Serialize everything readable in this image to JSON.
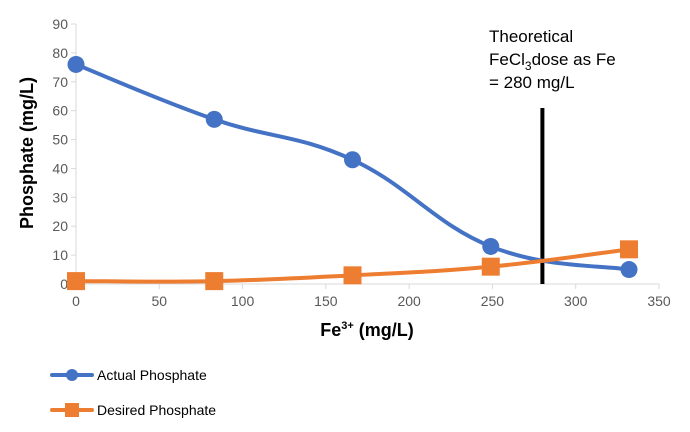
{
  "chart_data": {
    "type": "line",
    "title": "",
    "xlabel_base": "Fe",
    "xlabel_sup": "3+",
    "xlabel_unit": " (mg/L)",
    "ylabel": "Phosphate (mg/L)",
    "xlim": [
      0,
      350
    ],
    "ylim": [
      0,
      90
    ],
    "xticks": [
      0,
      50,
      100,
      150,
      200,
      250,
      300,
      350
    ],
    "yticks": [
      0,
      10,
      20,
      30,
      40,
      50,
      60,
      70,
      80,
      90
    ],
    "grid": false,
    "legend_position": "bottom-left",
    "series": [
      {
        "name": "Actual Phosphate",
        "color": "#4472C4",
        "marker": "circle",
        "x": [
          0,
          83,
          166,
          249,
          332
        ],
        "y": [
          76,
          57,
          43,
          13,
          5
        ]
      },
      {
        "name": "Desired Phosphate",
        "color": "#ED7D31",
        "marker": "square",
        "x": [
          0,
          83,
          166,
          249,
          332
        ],
        "y": [
          1,
          1,
          3,
          6,
          12
        ]
      }
    ],
    "reference_line": {
      "x": 280,
      "color": "#000000",
      "label_line1": "Theoretical",
      "label_line2_prefix": "FeCl",
      "label_line2_sub": "3",
      "label_line2_suffix": "dose as Fe",
      "label_line3": "= 280 mg/L"
    }
  }
}
